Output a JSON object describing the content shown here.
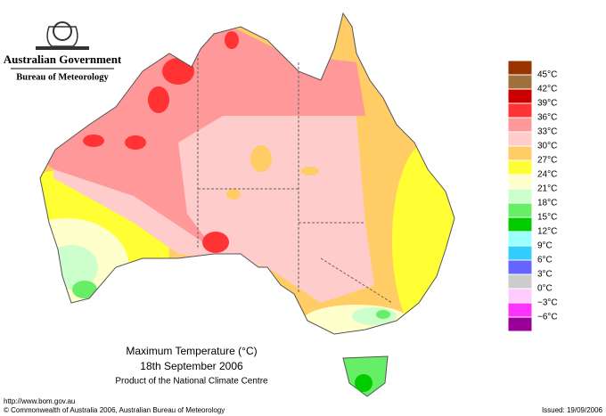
{
  "header": {
    "government": "Australian Government",
    "bureau": "Bureau of Meteorology"
  },
  "title": {
    "line1": "Maximum Temperature (°C)",
    "line2": "18th September 2006",
    "line3": "Product of the National Climate Centre"
  },
  "legend": {
    "labels": [
      "45°C",
      "42°C",
      "39°C",
      "36°C",
      "33°C",
      "30°C",
      "27°C",
      "24°C",
      "21°C",
      "18°C",
      "15°C",
      "12°C",
      "9°C",
      "6°C",
      "3°C",
      "0°C",
      "−3°C",
      "−6°C"
    ],
    "colors": [
      "#993300",
      "#a0703c",
      "#cc0000",
      "#ff3333",
      "#ff9999",
      "#ffcccc",
      "#ffcc66",
      "#ffff33",
      "#ffffcc",
      "#ccffcc",
      "#66ee66",
      "#00cc00",
      "#99ffff",
      "#33ccff",
      "#6666ff",
      "#cccccc",
      "#ffccff",
      "#ff33ff",
      "#990099"
    ]
  },
  "footer": {
    "url": "http://www.bom.gov.au",
    "copyright": "© Commonwealth of Australia 2006, Australian Bureau of Meteorology",
    "issued": "Issued: 19/09/2006"
  }
}
